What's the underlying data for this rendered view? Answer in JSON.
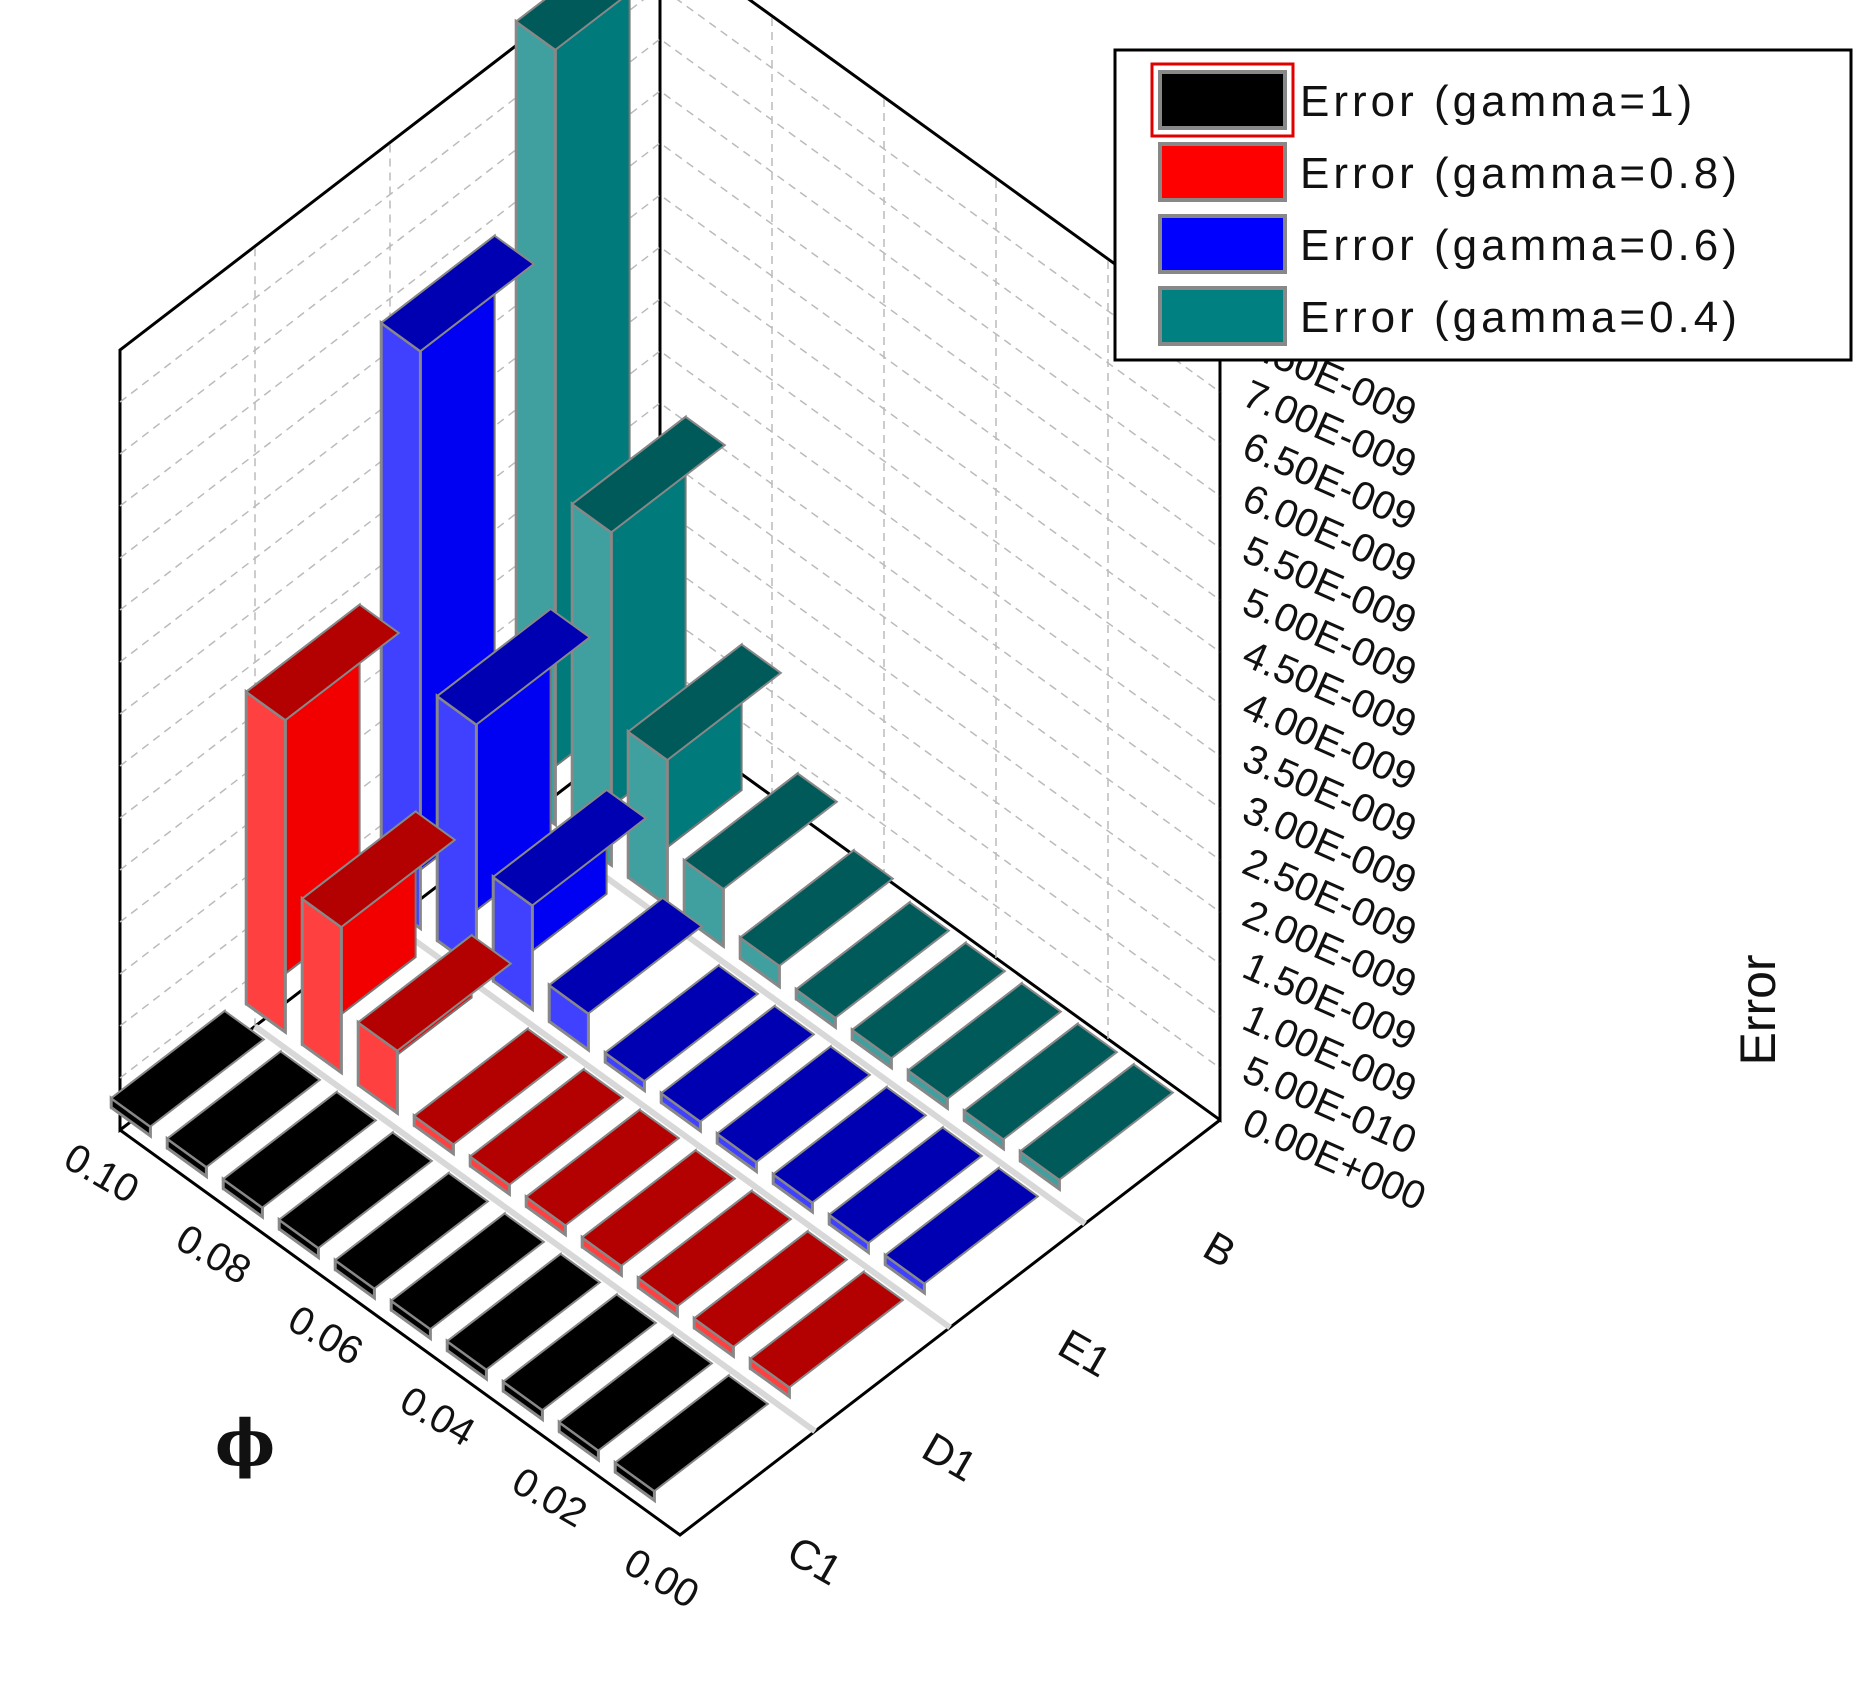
{
  "chart_data": {
    "type": "bar",
    "chart_subtype": "3d-bar",
    "x_axis": {
      "label": "ϕ",
      "ticks": [
        "0.10",
        "0.08",
        "0.06",
        "0.04",
        "0.02",
        "0.00"
      ],
      "categories": [
        0.1,
        0.09,
        0.08,
        0.07,
        0.06,
        0.05,
        0.04,
        0.03,
        0.02,
        0.01
      ]
    },
    "y_axis": {
      "categories": [
        "C1",
        "D1",
        "E1",
        "B"
      ]
    },
    "z_axis": {
      "label": "Error",
      "ticks": [
        "7.50E-009",
        "7.00E-009",
        "6.50E-009",
        "6.00E-009",
        "5.50E-009",
        "5.00E-009",
        "4.50E-009",
        "4.00E-009",
        "3.50E-009",
        "3.00E-009",
        "2.50E-009",
        "2.00E-009",
        "1.50E-009",
        "1.00E-009",
        "5.00E-010",
        "0.00E+000"
      ],
      "range": [
        0,
        7.5e-09
      ]
    },
    "series": [
      {
        "name": "Error (gamma=1)",
        "color": "#000000",
        "values": [
          2e-11,
          2e-11,
          2e-11,
          2e-11,
          2e-11,
          2e-11,
          2e-11,
          2e-11,
          2e-11,
          2e-11
        ]
      },
      {
        "name": "Error (gamma=0.8)",
        "color": "#ff0000",
        "values": [
          3e-09,
          1.4e-09,
          6e-10,
          2e-11,
          2e-11,
          2e-11,
          2e-11,
          2e-11,
          2e-11,
          2e-11
        ]
      },
      {
        "name": "Error (gamma=0.6)",
        "color": "#0000ff",
        "values": [
          5.55e-09,
          2.35e-09,
          1e-09,
          3.5e-10,
          6e-11,
          2e-11,
          2e-11,
          2e-11,
          2e-11,
          2e-11
        ]
      },
      {
        "name": "Error (gamma=0.4)",
        "color": "#008080",
        "values": [
          7.45e-09,
          3.2e-09,
          1.4e-09,
          5.5e-10,
          2e-10,
          5e-11,
          3e-11,
          2e-11,
          2e-11,
          2e-11
        ]
      }
    ],
    "grid": true,
    "legend_position": "top-right"
  }
}
